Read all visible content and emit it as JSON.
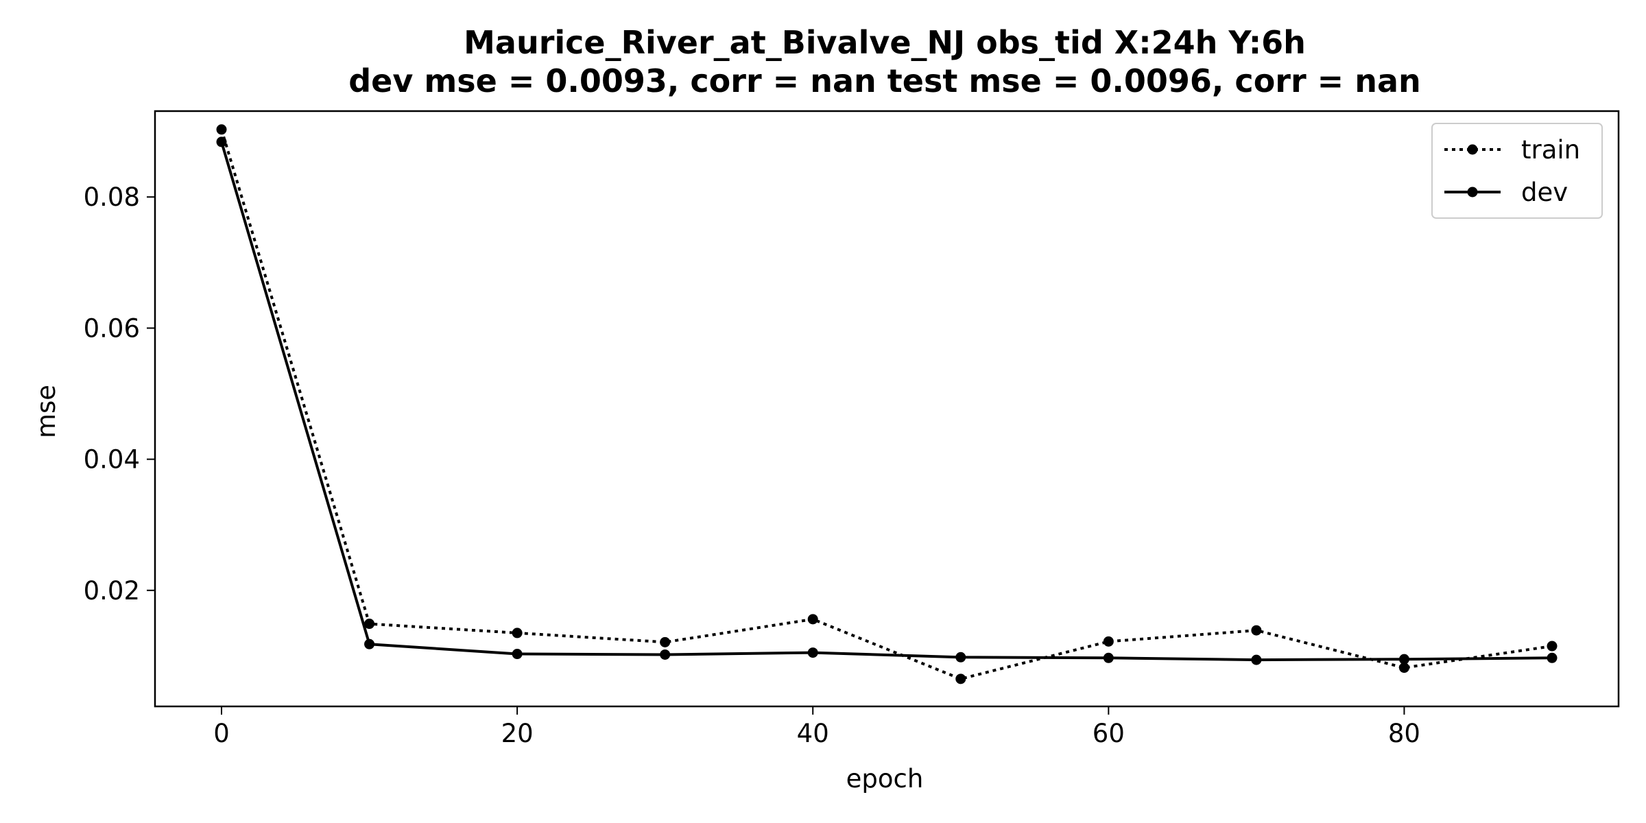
{
  "chart_data": {
    "type": "line",
    "title": "Maurice_River_at_Bivalve_NJ   obs_tid   X:24h   Y:6h",
    "subtitle": "dev mse = 0.0093, corr = nan   test mse = 0.0096, corr = nan",
    "xlabel": "epoch",
    "ylabel": "mse",
    "xlim": [
      -4.5,
      94.5
    ],
    "ylim": [
      0.0023,
      0.0931
    ],
    "xticks": [
      0,
      20,
      40,
      60,
      80
    ],
    "xtick_labels": [
      "0",
      "20",
      "40",
      "60",
      "80"
    ],
    "yticks": [
      0.02,
      0.04,
      0.06,
      0.08
    ],
    "ytick_labels": [
      "0.02",
      "0.04",
      "0.06",
      "0.08"
    ],
    "grid": false,
    "legend_position": "top-right",
    "x": [
      0,
      10,
      20,
      30,
      40,
      50,
      60,
      70,
      80,
      90
    ],
    "series": [
      {
        "name": "train",
        "style": "dotted",
        "color": "#000000",
        "values": [
          0.0903,
          0.0149,
          0.0135,
          0.0121,
          0.0156,
          0.0065,
          0.0122,
          0.0139,
          0.0082,
          0.0115
        ]
      },
      {
        "name": "dev",
        "style": "solid",
        "color": "#000000",
        "values": [
          0.0884,
          0.0118,
          0.0103,
          0.0102,
          0.0105,
          0.0098,
          0.0097,
          0.0094,
          0.0095,
          0.0097
        ]
      }
    ]
  }
}
